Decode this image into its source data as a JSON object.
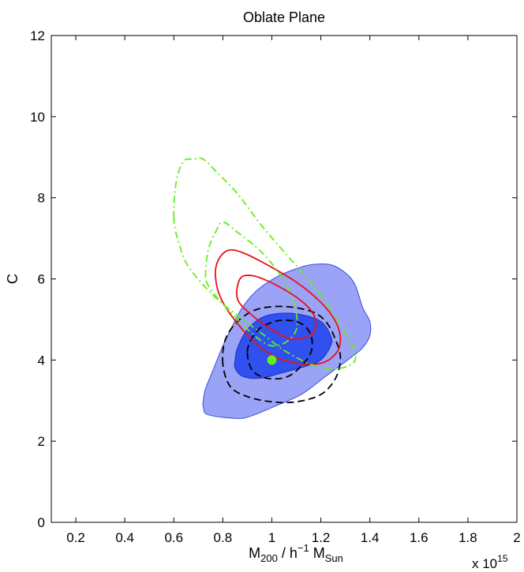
{
  "chart_data": {
    "type": "contour",
    "title": "Oblate Plane",
    "xlabel": {
      "main": "M",
      "sub1": "200",
      "mid": " / h",
      "sup": "−1",
      "main2": " M",
      "sub2": "Sun"
    },
    "ylabel": "C",
    "x_multiplier": {
      "base": "x 10",
      "exp": "15"
    },
    "xlim": [
      0.1,
      2.0
    ],
    "ylim": [
      0,
      12
    ],
    "xticks": [
      0.2,
      0.4,
      0.6,
      0.8,
      1,
      1.2,
      1.4,
      1.6,
      1.8,
      2
    ],
    "xtick_labels": [
      "0.2",
      "0.4",
      "0.6",
      "0.8",
      "1",
      "1.2",
      "1.4",
      "1.6",
      "1.8",
      "2"
    ],
    "yticks": [
      0,
      2,
      4,
      6,
      8,
      10,
      12
    ],
    "ytick_labels": [
      "0",
      "2",
      "4",
      "6",
      "8",
      "10",
      "12"
    ],
    "grid": false,
    "colors": {
      "outer_fill": "#9aa3f5",
      "outer_edge": "#3a4de0",
      "inner_fill": "#3050f0",
      "inner_edge": "#1b2fb8",
      "red": "#e8121a",
      "green": "#66ee1a",
      "black": "#000000",
      "point": "#66ee1a"
    },
    "filled_regions": [
      {
        "level": "outer",
        "points": [
          [
            0.72,
            3.0
          ],
          [
            0.73,
            3.3
          ],
          [
            0.76,
            3.75
          ],
          [
            0.8,
            4.35
          ],
          [
            0.84,
            4.85
          ],
          [
            0.88,
            5.3
          ],
          [
            0.94,
            5.72
          ],
          [
            1.02,
            6.05
          ],
          [
            1.1,
            6.25
          ],
          [
            1.16,
            6.35
          ],
          [
            1.24,
            6.35
          ],
          [
            1.3,
            6.15
          ],
          [
            1.34,
            5.85
          ],
          [
            1.37,
            5.3
          ],
          [
            1.4,
            4.95
          ],
          [
            1.4,
            4.6
          ],
          [
            1.37,
            4.3
          ],
          [
            1.32,
            4.05
          ],
          [
            1.22,
            3.6
          ],
          [
            1.12,
            3.15
          ],
          [
            1.02,
            2.88
          ],
          [
            0.92,
            2.63
          ],
          [
            0.86,
            2.56
          ],
          [
            0.74,
            2.65
          ],
          [
            0.72,
            2.85
          ]
        ]
      },
      {
        "level": "inner",
        "points": [
          [
            0.85,
            4.0
          ],
          [
            0.86,
            4.3
          ],
          [
            0.9,
            4.75
          ],
          [
            0.96,
            5.05
          ],
          [
            1.03,
            5.15
          ],
          [
            1.12,
            5.12
          ],
          [
            1.2,
            4.95
          ],
          [
            1.24,
            4.6
          ],
          [
            1.24,
            4.35
          ],
          [
            1.2,
            4.0
          ],
          [
            1.14,
            3.85
          ],
          [
            1.04,
            3.68
          ],
          [
            0.95,
            3.55
          ],
          [
            0.88,
            3.6
          ],
          [
            0.85,
            3.8
          ]
        ]
      }
    ],
    "contour_lines": [
      {
        "color": "black",
        "dash": "dashed",
        "points": [
          [
            0.8,
            3.9
          ],
          [
            0.81,
            4.5
          ],
          [
            0.86,
            4.95
          ],
          [
            0.94,
            5.25
          ],
          [
            1.05,
            5.32
          ],
          [
            1.16,
            5.2
          ],
          [
            1.22,
            4.95
          ],
          [
            1.26,
            4.5
          ],
          [
            1.28,
            4.05
          ],
          [
            1.26,
            3.55
          ],
          [
            1.2,
            3.15
          ],
          [
            1.1,
            2.97
          ],
          [
            1.0,
            2.97
          ],
          [
            0.9,
            3.1
          ],
          [
            0.83,
            3.35
          ]
        ]
      },
      {
        "color": "black",
        "dash": "dashed",
        "points": [
          [
            0.9,
            4.2
          ],
          [
            0.92,
            4.55
          ],
          [
            0.96,
            4.82
          ],
          [
            1.04,
            4.98
          ],
          [
            1.12,
            4.9
          ],
          [
            1.16,
            4.6
          ],
          [
            1.16,
            4.2
          ],
          [
            1.12,
            3.85
          ],
          [
            1.06,
            3.58
          ],
          [
            0.98,
            3.55
          ],
          [
            0.92,
            3.75
          ]
        ]
      },
      {
        "color": "red",
        "dash": "solid",
        "points": [
          [
            0.77,
            6.05
          ],
          [
            0.78,
            6.45
          ],
          [
            0.82,
            6.7
          ],
          [
            0.88,
            6.65
          ],
          [
            0.98,
            6.35
          ],
          [
            1.1,
            5.92
          ],
          [
            1.2,
            5.42
          ],
          [
            1.26,
            4.95
          ],
          [
            1.28,
            4.5
          ],
          [
            1.26,
            4.15
          ],
          [
            1.2,
            3.92
          ],
          [
            1.1,
            3.92
          ],
          [
            1.0,
            4.12
          ],
          [
            0.92,
            4.5
          ],
          [
            0.84,
            5.05
          ],
          [
            0.79,
            5.55
          ]
        ]
      },
      {
        "color": "red",
        "dash": "solid",
        "points": [
          [
            0.86,
            5.5
          ],
          [
            0.87,
            6.0
          ],
          [
            0.92,
            6.08
          ],
          [
            1.0,
            5.9
          ],
          [
            1.1,
            5.55
          ],
          [
            1.16,
            5.22
          ],
          [
            1.18,
            4.9
          ],
          [
            1.16,
            4.62
          ],
          [
            1.08,
            4.52
          ],
          [
            1.0,
            4.75
          ],
          [
            0.92,
            5.1
          ]
        ]
      },
      {
        "color": "green",
        "dash": "dashdot",
        "points": [
          [
            0.6,
            7.5
          ],
          [
            0.61,
            8.4
          ],
          [
            0.64,
            8.9
          ],
          [
            0.68,
            8.95
          ],
          [
            0.72,
            8.95
          ],
          [
            0.78,
            8.6
          ],
          [
            0.86,
            8.1
          ],
          [
            0.96,
            7.3
          ],
          [
            1.06,
            6.6
          ],
          [
            1.14,
            6.05
          ],
          [
            1.2,
            5.6
          ],
          [
            1.26,
            5.05
          ],
          [
            1.32,
            4.45
          ],
          [
            1.34,
            4.0
          ],
          [
            1.28,
            3.8
          ],
          [
            1.18,
            3.85
          ],
          [
            1.06,
            4.2
          ],
          [
            0.96,
            4.65
          ],
          [
            0.86,
            5.1
          ],
          [
            0.76,
            5.6
          ],
          [
            0.66,
            6.3
          ],
          [
            0.62,
            6.9
          ]
        ]
      },
      {
        "color": "green",
        "dash": "dashdot",
        "points": [
          [
            0.73,
            6.05
          ],
          [
            0.74,
            6.7
          ],
          [
            0.77,
            7.15
          ],
          [
            0.8,
            7.4
          ],
          [
            0.86,
            7.15
          ],
          [
            0.96,
            6.65
          ],
          [
            1.04,
            6.05
          ],
          [
            1.08,
            5.55
          ],
          [
            1.1,
            5.15
          ],
          [
            1.1,
            4.75
          ],
          [
            1.06,
            4.45
          ],
          [
            1.0,
            4.35
          ],
          [
            0.94,
            4.55
          ],
          [
            0.86,
            5.0
          ],
          [
            0.79,
            5.45
          ],
          [
            0.75,
            5.75
          ]
        ]
      }
    ],
    "points": [
      {
        "x": 1.0,
        "y": 4.0,
        "color": "point"
      }
    ]
  }
}
